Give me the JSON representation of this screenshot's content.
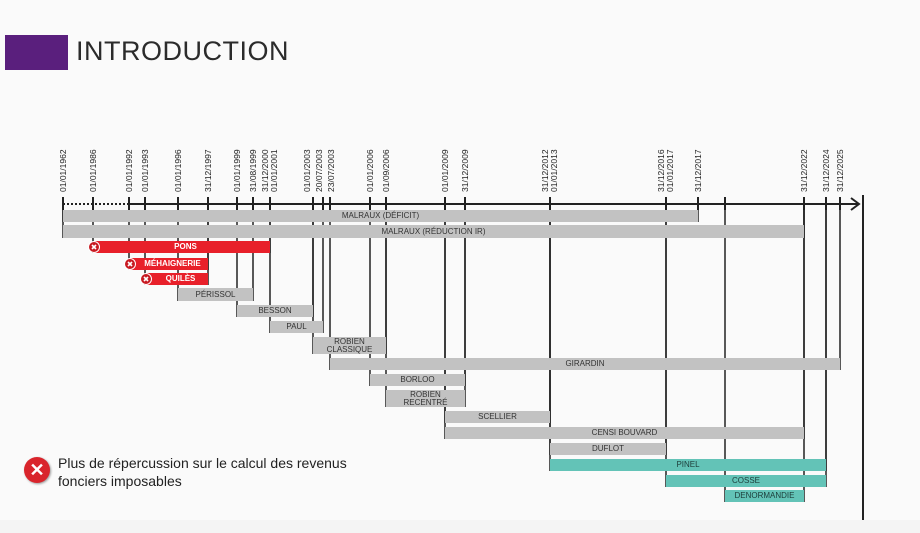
{
  "title": "INTRODUCTION",
  "legend": {
    "icon": "x-circle-icon",
    "text": "Plus de répercussion sur le calcul des revenus fonciers imposables"
  },
  "colors": {
    "accent": "#5a1f7d",
    "abolished": "#e8202a",
    "current": "#63c3b7",
    "past": "#c2c2c2"
  },
  "chart_data": {
    "type": "timeline",
    "ticks": [
      "01/01/1962",
      "01/01/1986",
      "01/01/1992",
      "01/01/1993",
      "01/01/1996",
      "31/12/1997",
      "01/01/1999",
      "31/08/1999",
      "31/12/2000\n01/01/2001",
      "01/01/2003",
      "20/07/2003",
      "23/07/2003",
      "01/01/2006",
      "01/09/2006",
      "01/01/2009",
      "31/12/2009",
      "31/12/2012\n01/01/2013",
      "31/12/2016\n01/01/2017",
      "31/12/2017",
      "",
      "31/12/2022",
      "31/12/2024",
      "31/12/2025"
    ],
    "bars": [
      {
        "label": "MALRAUX (DÉFICIT)",
        "start": 0,
        "end": 18,
        "status": "grey"
      },
      {
        "label": "MALRAUX (RÉDUCTION IR)",
        "start": 0,
        "end": 20,
        "status": "grey"
      },
      {
        "label": "PONS",
        "start": 1,
        "end": 8,
        "status": "red"
      },
      {
        "label": "MÉHAIGNERIE",
        "start": 2,
        "end": 5,
        "status": "red"
      },
      {
        "label": "QUILÈS",
        "start": 3,
        "end": 5,
        "status": "red"
      },
      {
        "label": "PÉRISSOL",
        "start": 4,
        "end": 7,
        "status": "grey"
      },
      {
        "label": "BESSON",
        "start": 6,
        "end": 9,
        "status": "grey"
      },
      {
        "label": "PAUL",
        "start": 8,
        "end": 10,
        "status": "grey"
      },
      {
        "label": "ROBIEN CLASSIQUE",
        "start": 9,
        "end": 13,
        "status": "grey"
      },
      {
        "label": "GIRARDIN",
        "start": 11,
        "end": 22,
        "status": "grey"
      },
      {
        "label": "BORLOO",
        "start": 12,
        "end": 15,
        "status": "grey"
      },
      {
        "label": "ROBIEN RECENTRÉ",
        "start": 13,
        "end": 15,
        "status": "grey"
      },
      {
        "label": "SCELLIER",
        "start": 14,
        "end": 16,
        "status": "grey"
      },
      {
        "label": "CENSI BOUVARD",
        "start": 14,
        "end": 20,
        "status": "grey"
      },
      {
        "label": "DUFLOT",
        "start": 16,
        "end": 17,
        "status": "grey"
      },
      {
        "label": "PINEL",
        "start": 16,
        "end": 21,
        "status": "teal"
      },
      {
        "label": "COSSE",
        "start": 17,
        "end": 21,
        "status": "teal"
      },
      {
        "label": "DENORMANDIE",
        "start": 19,
        "end": 20,
        "status": "teal"
      }
    ]
  }
}
